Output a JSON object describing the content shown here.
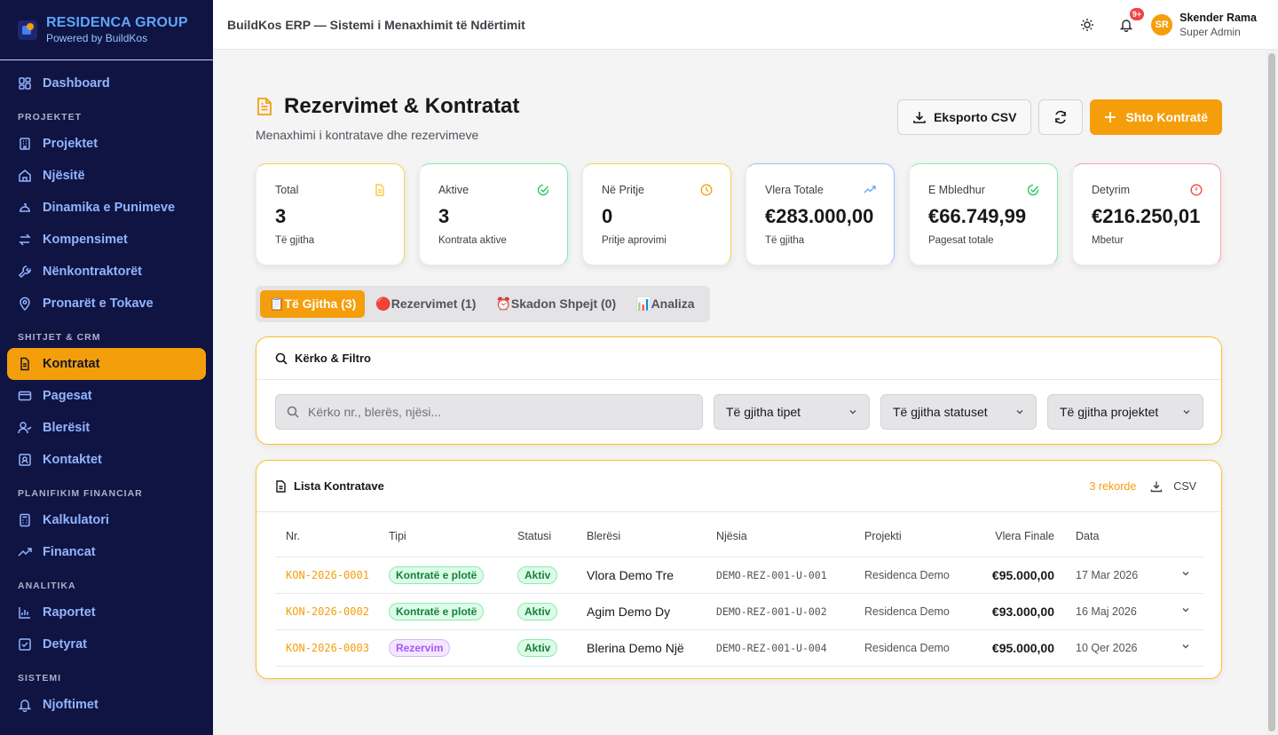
{
  "brand": {
    "name": "RESIDENCA GROUP",
    "sub": "Powered by BuildKos"
  },
  "sidebar": {
    "dashboard": "Dashboard",
    "sections": {
      "projektet": "PROJEKTET",
      "shitjet": "SHITJET & CRM",
      "planifikim": "PLANIFIKIM FINANCIAR",
      "analitika": "ANALITIKA",
      "sistemi": "SISTEMI"
    },
    "items": {
      "projektet": "Projektet",
      "njesite": "Njësitë",
      "dinamika": "Dinamika e Punimeve",
      "kompensimet": "Kompensimet",
      "nenkontraktoret": "Nënkontraktorët",
      "pronaret": "Pronarët e Tokave",
      "kontratat": "Kontratat",
      "pagesat": "Pagesat",
      "bleresit": "Blerësit",
      "kontaktet": "Kontaktet",
      "kalkulatori": "Kalkulatori",
      "financat": "Financat",
      "raportet": "Raportet",
      "detyrat": "Detyrat",
      "njoftimet": "Njoftimet"
    }
  },
  "topbar": {
    "title": "BuildKos ERP — Sistemi i Menaxhimit të Ndërtimit",
    "notif_badge": "9+",
    "avatar_initials": "SR",
    "user_name": "Skender Rama",
    "user_role": "Super Admin"
  },
  "page": {
    "title": "Rezervimet & Kontratat",
    "subtitle": "Menaxhimi i kontratave dhe rezervimeve",
    "export_label": "Eksporto CSV",
    "add_label": "Shto Kontratë"
  },
  "stats": [
    {
      "label": "Total",
      "value": "3",
      "sub": "Të gjitha",
      "color": "#fbbf24"
    },
    {
      "label": "Aktive",
      "value": "3",
      "sub": "Kontrata aktive",
      "color": "#22c55e"
    },
    {
      "label": "Në Pritje",
      "value": "0",
      "sub": "Pritje aprovimi",
      "color": "#f59e0b"
    },
    {
      "label": "Vlera Totale",
      "value": "€283.000,00",
      "sub": "Të gjitha",
      "color": "#60a5fa"
    },
    {
      "label": "E Mbledhur",
      "value": "€66.749,99",
      "sub": "Pagesat totale",
      "color": "#22c55e"
    },
    {
      "label": "Detyrim",
      "value": "€216.250,01",
      "sub": "Mbetur",
      "color": "#ef4444"
    }
  ],
  "tabs": [
    {
      "label": "📋Të Gjitha (3)"
    },
    {
      "label": "🔴Rezervimet (1)"
    },
    {
      "label": "⏰Skadon Shpejt (0)"
    },
    {
      "label": "📊Analiza"
    }
  ],
  "filter": {
    "title": "Kërko & Filtro",
    "search_placeholder": "Kërko nr., blerës, njësi...",
    "type_select": "Të gjitha tipet",
    "status_select": "Të gjitha statuset",
    "project_select": "Të gjitha projektet"
  },
  "list": {
    "title": "Lista Kontratave",
    "record_count": "3 rekorde",
    "csv_label": "CSV",
    "columns": [
      "Nr.",
      "Tipi",
      "Statusi",
      "Blerësi",
      "Njësia",
      "Projekti",
      "Vlera Finale",
      "Data"
    ],
    "rows": [
      {
        "nr": "KON-2026-0001",
        "tipi": "Kontratë e plotë",
        "statusi": "Aktiv",
        "bleresi": "Vlora Demo Tre",
        "njesia": "DEMO-REZ-001-U-001",
        "projekti": "Residenca Demo",
        "vlera": "€95.000,00",
        "data": "17 Mar 2026"
      },
      {
        "nr": "KON-2026-0002",
        "tipi": "Kontratë e plotë",
        "statusi": "Aktiv",
        "bleresi": "Agim Demo Dy",
        "njesia": "DEMO-REZ-001-U-002",
        "projekti": "Residenca Demo",
        "vlera": "€93.000,00",
        "data": "16 Maj 2026"
      },
      {
        "nr": "KON-2026-0003",
        "tipi": "Rezervim",
        "statusi": "Aktiv",
        "bleresi": "Blerina Demo Një",
        "njesia": "DEMO-REZ-001-U-004",
        "projekti": "Residenca Demo",
        "vlera": "€95.000,00",
        "data": "10 Qer 2026"
      }
    ]
  }
}
